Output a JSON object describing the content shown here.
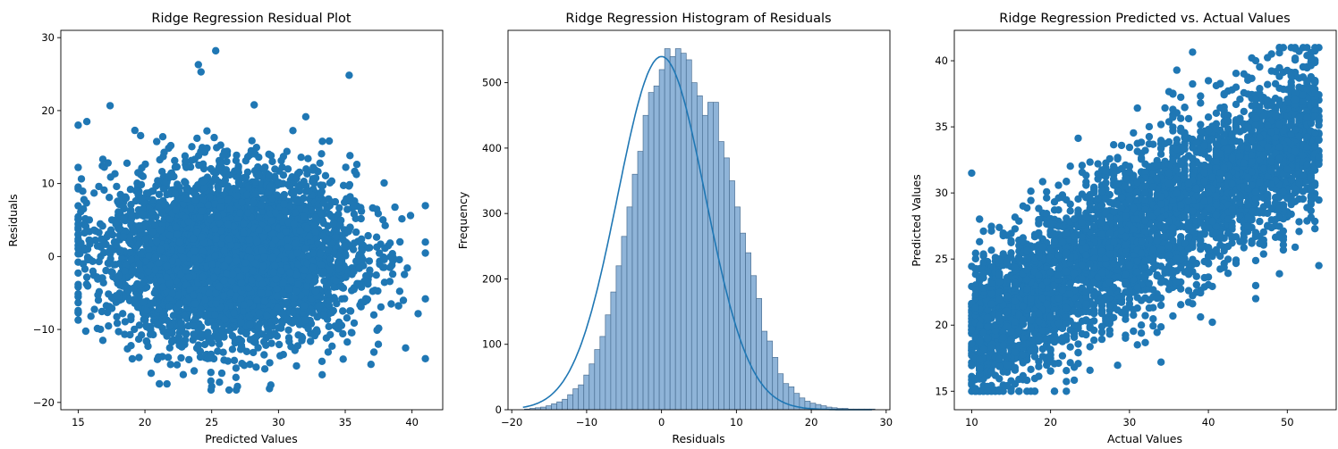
{
  "colors": {
    "scatter": "#1f77b4",
    "hist_fill": "#8fb4d8",
    "hist_edge": "#4a6f93",
    "kde": "#1f77b4"
  },
  "chart_data": [
    {
      "type": "scatter",
      "title": "Ridge Regression Residual Plot",
      "xlabel": "Predicted Values",
      "ylabel": "Residuals",
      "xlim": [
        13.7,
        42.3
      ],
      "ylim": [
        -21,
        31
      ],
      "xticks": [
        15,
        20,
        25,
        30,
        35,
        40
      ],
      "yticks": [
        -20,
        -10,
        0,
        10,
        20,
        30
      ],
      "xtick_labels": [
        "15",
        "20",
        "25",
        "30",
        "35",
        "40"
      ],
      "ytick_labels": [
        "−20",
        "−10",
        "0",
        "10",
        "20",
        "30"
      ],
      "distribution": {
        "x_mean": 26.5,
        "x_sd": 4.6,
        "x_range": [
          15,
          41
        ],
        "y_mean": 0,
        "y_sd": 5.8,
        "y_range": [
          -18.3,
          28.2
        ]
      },
      "notable_points": [
        [
          25.3,
          28.2
        ],
        [
          24.0,
          26.3
        ],
        [
          24.2,
          25.3
        ],
        [
          41.0,
          -14.0
        ],
        [
          15.0,
          18.0
        ],
        [
          26.3,
          -18.3
        ],
        [
          25.0,
          -17.8
        ]
      ]
    },
    {
      "type": "histogram",
      "title": "Ridge Regression Histogram of Residuals",
      "xlabel": "Residuals",
      "ylabel": "Frequency",
      "xlim": [
        -20.5,
        30.5
      ],
      "ylim": [
        0,
        580
      ],
      "xticks": [
        -20,
        -10,
        0,
        10,
        20,
        30
      ],
      "yticks": [
        0,
        100,
        200,
        300,
        400,
        500
      ],
      "xtick_labels": [
        "−20",
        "−10",
        "0",
        "10",
        "20",
        "30"
      ],
      "ytick_labels": [
        "0",
        "100",
        "200",
        "300",
        "400",
        "500"
      ],
      "bin_edges_start": -18.3,
      "bin_width": 0.72,
      "counts": [
        1,
        2,
        3,
        4,
        6,
        9,
        12,
        16,
        23,
        32,
        38,
        53,
        70,
        92,
        112,
        145,
        180,
        220,
        265,
        310,
        360,
        395,
        450,
        485,
        495,
        520,
        552,
        540,
        552,
        545,
        535,
        500,
        480,
        450,
        470,
        470,
        410,
        385,
        350,
        310,
        270,
        240,
        205,
        170,
        120,
        105,
        80,
        55,
        40,
        35,
        25,
        18,
        13,
        10,
        8,
        6,
        4,
        3,
        2,
        2,
        1,
        1,
        1,
        1,
        1
      ],
      "kde": {
        "mean": 0,
        "sd": 5.85,
        "peak": 540
      }
    },
    {
      "type": "scatter",
      "title": "Ridge Regression Predicted vs. Actual Values",
      "xlabel": "Actual Values",
      "ylabel": "Predicted Values",
      "xlim": [
        7.8,
        56.2
      ],
      "ylim": [
        13.6,
        42.3
      ],
      "xticks": [
        10,
        20,
        30,
        40,
        50
      ],
      "yticks": [
        15,
        20,
        25,
        30,
        35,
        40
      ],
      "xtick_labels": [
        "10",
        "20",
        "30",
        "40",
        "50"
      ],
      "ytick_labels": [
        "15",
        "20",
        "25",
        "30",
        "35",
        "40"
      ],
      "distribution": {
        "x_range": [
          10,
          54
        ],
        "slope": 0.35,
        "intercept": 16.0,
        "noise_sd": 3.0,
        "y_range": [
          15,
          41
        ]
      },
      "notable_points": [
        [
          49.0,
          41.0
        ],
        [
          46.0,
          40.0
        ],
        [
          53.0,
          40.2
        ],
        [
          10.0,
          31.5
        ],
        [
          16.0,
          15.0
        ],
        [
          22.0,
          15.0
        ],
        [
          54.0,
          24.5
        ],
        [
          46.0,
          22.0
        ],
        [
          34.0,
          17.2
        ]
      ]
    }
  ]
}
